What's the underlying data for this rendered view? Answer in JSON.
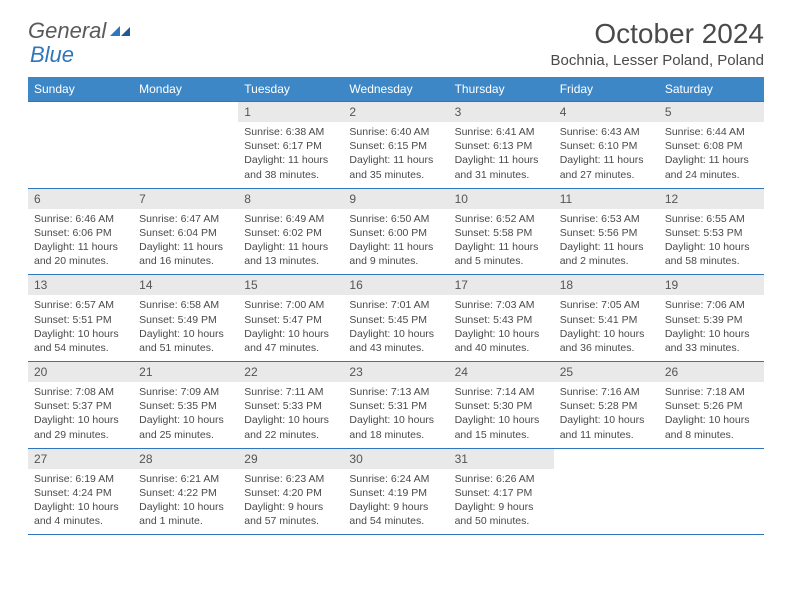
{
  "logo": {
    "text1": "General",
    "text2": "Blue"
  },
  "title": "October 2024",
  "location": "Bochnia, Lesser Poland, Poland",
  "colors": {
    "header_bg": "#3d87c7",
    "header_text": "#ffffff",
    "daynum_bg": "#e9e9e9",
    "border": "#2f76bc",
    "body_text": "#4a4a4a"
  },
  "day_labels": [
    "Sunday",
    "Monday",
    "Tuesday",
    "Wednesday",
    "Thursday",
    "Friday",
    "Saturday"
  ],
  "weeks": [
    [
      null,
      null,
      {
        "n": "1",
        "sr": "Sunrise: 6:38 AM",
        "ss": "Sunset: 6:17 PM",
        "d1": "Daylight: 11 hours",
        "d2": "and 38 minutes."
      },
      {
        "n": "2",
        "sr": "Sunrise: 6:40 AM",
        "ss": "Sunset: 6:15 PM",
        "d1": "Daylight: 11 hours",
        "d2": "and 35 minutes."
      },
      {
        "n": "3",
        "sr": "Sunrise: 6:41 AM",
        "ss": "Sunset: 6:13 PM",
        "d1": "Daylight: 11 hours",
        "d2": "and 31 minutes."
      },
      {
        "n": "4",
        "sr": "Sunrise: 6:43 AM",
        "ss": "Sunset: 6:10 PM",
        "d1": "Daylight: 11 hours",
        "d2": "and 27 minutes."
      },
      {
        "n": "5",
        "sr": "Sunrise: 6:44 AM",
        "ss": "Sunset: 6:08 PM",
        "d1": "Daylight: 11 hours",
        "d2": "and 24 minutes."
      }
    ],
    [
      {
        "n": "6",
        "sr": "Sunrise: 6:46 AM",
        "ss": "Sunset: 6:06 PM",
        "d1": "Daylight: 11 hours",
        "d2": "and 20 minutes."
      },
      {
        "n": "7",
        "sr": "Sunrise: 6:47 AM",
        "ss": "Sunset: 6:04 PM",
        "d1": "Daylight: 11 hours",
        "d2": "and 16 minutes."
      },
      {
        "n": "8",
        "sr": "Sunrise: 6:49 AM",
        "ss": "Sunset: 6:02 PM",
        "d1": "Daylight: 11 hours",
        "d2": "and 13 minutes."
      },
      {
        "n": "9",
        "sr": "Sunrise: 6:50 AM",
        "ss": "Sunset: 6:00 PM",
        "d1": "Daylight: 11 hours",
        "d2": "and 9 minutes."
      },
      {
        "n": "10",
        "sr": "Sunrise: 6:52 AM",
        "ss": "Sunset: 5:58 PM",
        "d1": "Daylight: 11 hours",
        "d2": "and 5 minutes."
      },
      {
        "n": "11",
        "sr": "Sunrise: 6:53 AM",
        "ss": "Sunset: 5:56 PM",
        "d1": "Daylight: 11 hours",
        "d2": "and 2 minutes."
      },
      {
        "n": "12",
        "sr": "Sunrise: 6:55 AM",
        "ss": "Sunset: 5:53 PM",
        "d1": "Daylight: 10 hours",
        "d2": "and 58 minutes."
      }
    ],
    [
      {
        "n": "13",
        "sr": "Sunrise: 6:57 AM",
        "ss": "Sunset: 5:51 PM",
        "d1": "Daylight: 10 hours",
        "d2": "and 54 minutes."
      },
      {
        "n": "14",
        "sr": "Sunrise: 6:58 AM",
        "ss": "Sunset: 5:49 PM",
        "d1": "Daylight: 10 hours",
        "d2": "and 51 minutes."
      },
      {
        "n": "15",
        "sr": "Sunrise: 7:00 AM",
        "ss": "Sunset: 5:47 PM",
        "d1": "Daylight: 10 hours",
        "d2": "and 47 minutes."
      },
      {
        "n": "16",
        "sr": "Sunrise: 7:01 AM",
        "ss": "Sunset: 5:45 PM",
        "d1": "Daylight: 10 hours",
        "d2": "and 43 minutes."
      },
      {
        "n": "17",
        "sr": "Sunrise: 7:03 AM",
        "ss": "Sunset: 5:43 PM",
        "d1": "Daylight: 10 hours",
        "d2": "and 40 minutes."
      },
      {
        "n": "18",
        "sr": "Sunrise: 7:05 AM",
        "ss": "Sunset: 5:41 PM",
        "d1": "Daylight: 10 hours",
        "d2": "and 36 minutes."
      },
      {
        "n": "19",
        "sr": "Sunrise: 7:06 AM",
        "ss": "Sunset: 5:39 PM",
        "d1": "Daylight: 10 hours",
        "d2": "and 33 minutes."
      }
    ],
    [
      {
        "n": "20",
        "sr": "Sunrise: 7:08 AM",
        "ss": "Sunset: 5:37 PM",
        "d1": "Daylight: 10 hours",
        "d2": "and 29 minutes."
      },
      {
        "n": "21",
        "sr": "Sunrise: 7:09 AM",
        "ss": "Sunset: 5:35 PM",
        "d1": "Daylight: 10 hours",
        "d2": "and 25 minutes."
      },
      {
        "n": "22",
        "sr": "Sunrise: 7:11 AM",
        "ss": "Sunset: 5:33 PM",
        "d1": "Daylight: 10 hours",
        "d2": "and 22 minutes."
      },
      {
        "n": "23",
        "sr": "Sunrise: 7:13 AM",
        "ss": "Sunset: 5:31 PM",
        "d1": "Daylight: 10 hours",
        "d2": "and 18 minutes."
      },
      {
        "n": "24",
        "sr": "Sunrise: 7:14 AM",
        "ss": "Sunset: 5:30 PM",
        "d1": "Daylight: 10 hours",
        "d2": "and 15 minutes."
      },
      {
        "n": "25",
        "sr": "Sunrise: 7:16 AM",
        "ss": "Sunset: 5:28 PM",
        "d1": "Daylight: 10 hours",
        "d2": "and 11 minutes."
      },
      {
        "n": "26",
        "sr": "Sunrise: 7:18 AM",
        "ss": "Sunset: 5:26 PM",
        "d1": "Daylight: 10 hours",
        "d2": "and 8 minutes."
      }
    ],
    [
      {
        "n": "27",
        "sr": "Sunrise: 6:19 AM",
        "ss": "Sunset: 4:24 PM",
        "d1": "Daylight: 10 hours",
        "d2": "and 4 minutes."
      },
      {
        "n": "28",
        "sr": "Sunrise: 6:21 AM",
        "ss": "Sunset: 4:22 PM",
        "d1": "Daylight: 10 hours",
        "d2": "and 1 minute."
      },
      {
        "n": "29",
        "sr": "Sunrise: 6:23 AM",
        "ss": "Sunset: 4:20 PM",
        "d1": "Daylight: 9 hours",
        "d2": "and 57 minutes."
      },
      {
        "n": "30",
        "sr": "Sunrise: 6:24 AM",
        "ss": "Sunset: 4:19 PM",
        "d1": "Daylight: 9 hours",
        "d2": "and 54 minutes."
      },
      {
        "n": "31",
        "sr": "Sunrise: 6:26 AM",
        "ss": "Sunset: 4:17 PM",
        "d1": "Daylight: 9 hours",
        "d2": "and 50 minutes."
      },
      null,
      null
    ]
  ]
}
